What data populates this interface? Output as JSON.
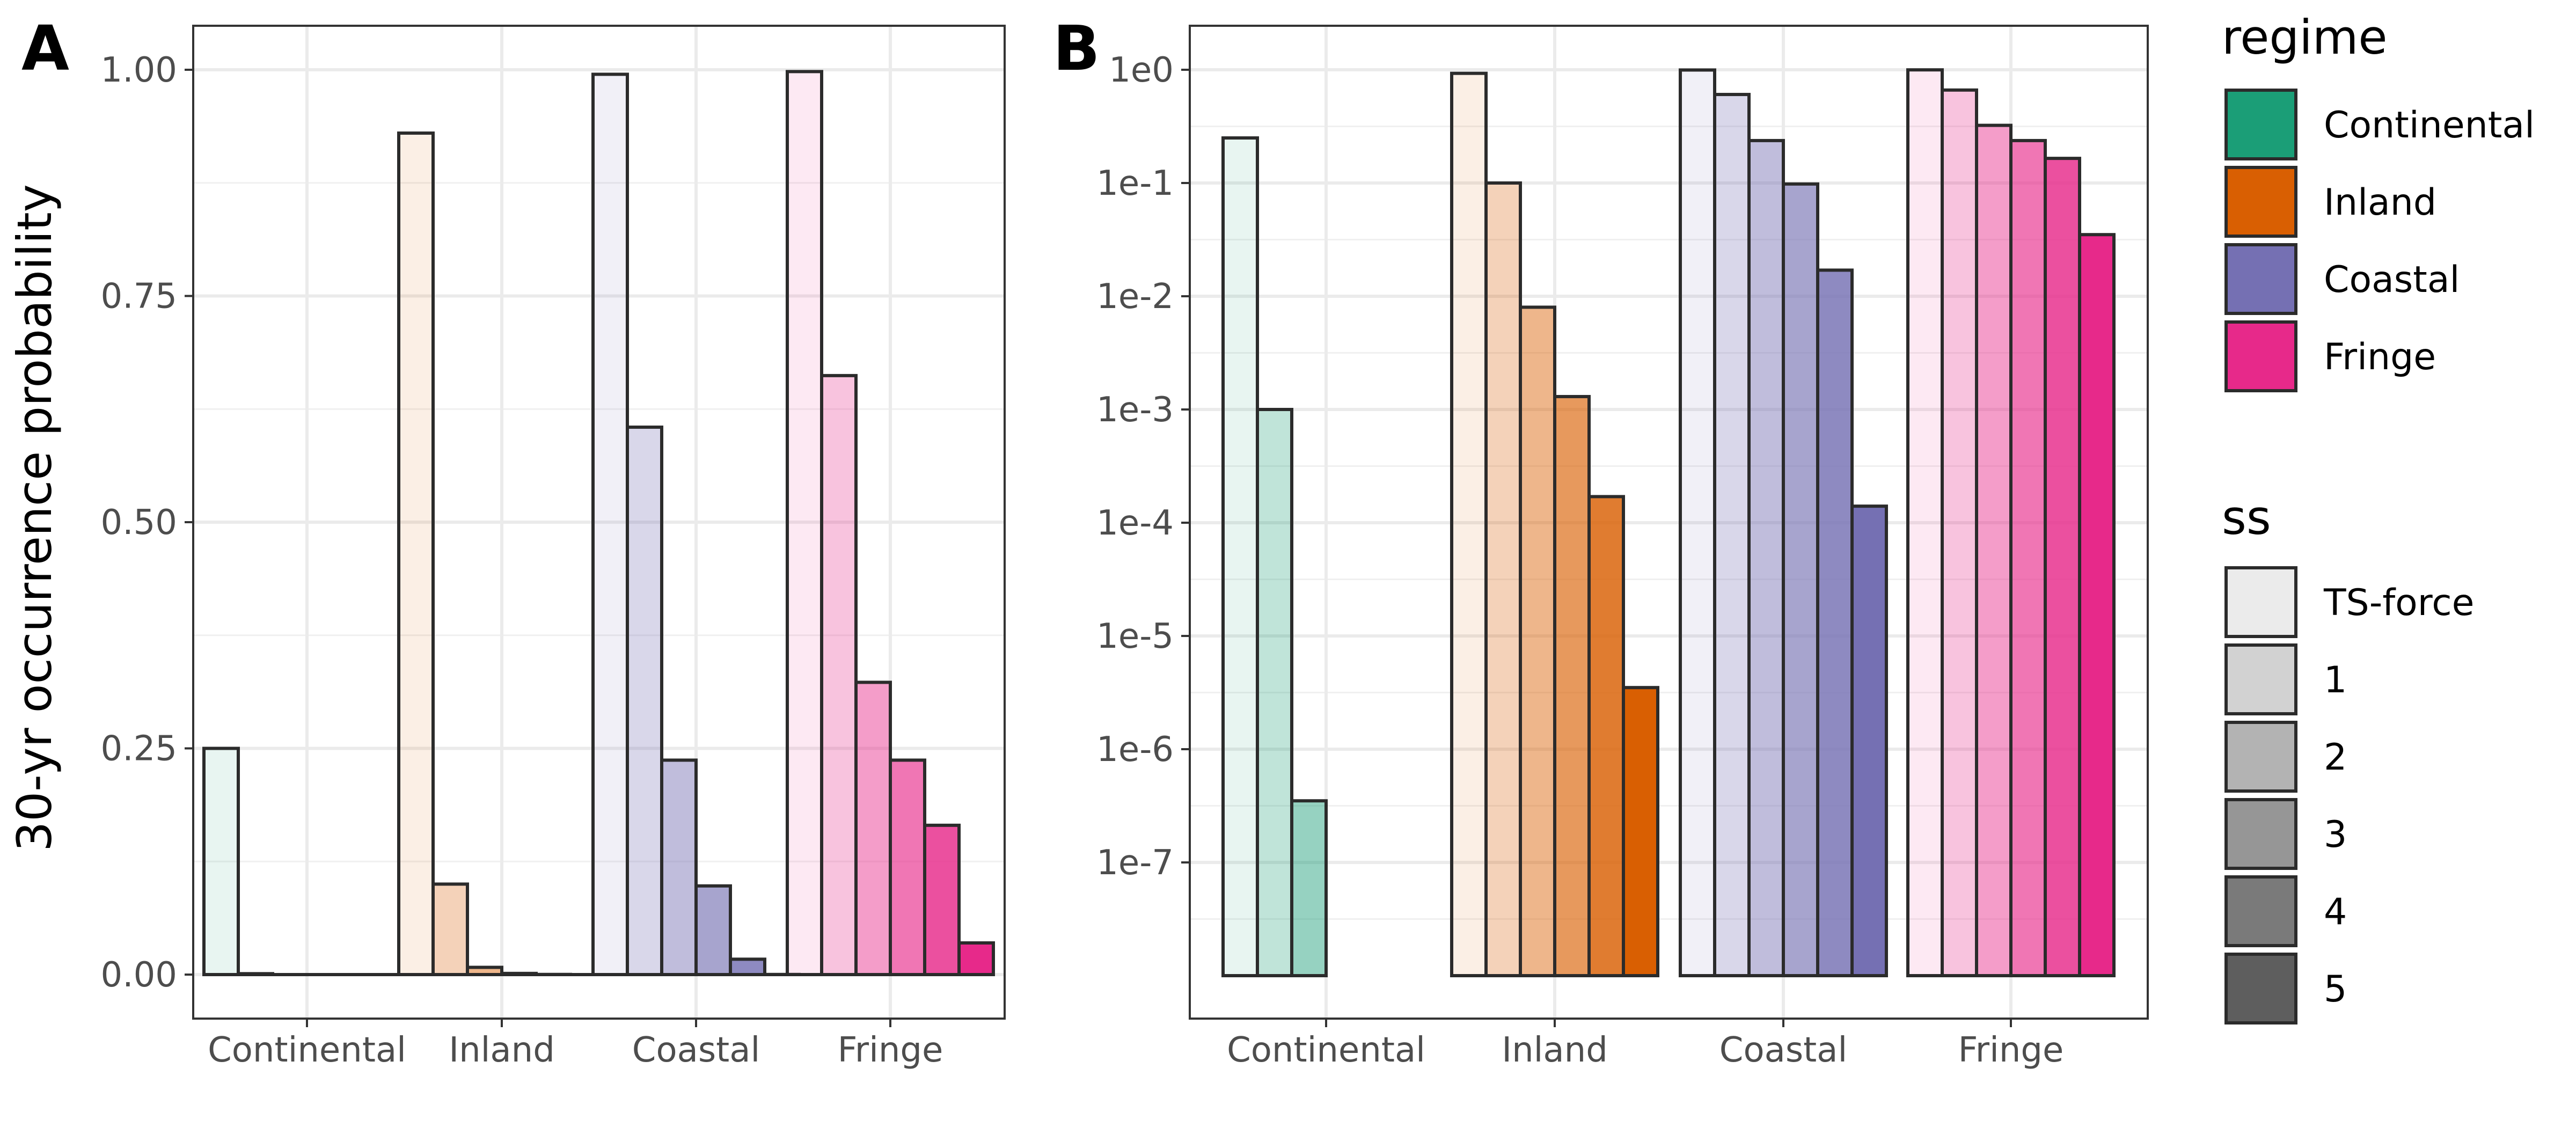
{
  "chart_data": [
    {
      "panel": "A",
      "type": "bar",
      "ylabel": "30-yr occurrence probability",
      "xlabel": "",
      "ylim": [
        -0.05,
        1.05
      ],
      "yticks": [
        0,
        0.25,
        0.5,
        0.75,
        1.0
      ],
      "ytick_labels": [
        "0.00",
        "0.25",
        "0.50",
        "0.75",
        "1.00"
      ],
      "grid": true,
      "categories": [
        "Continental",
        "Inland",
        "Coastal",
        "Fringe"
      ],
      "series_labels": [
        "TS-force",
        "1",
        "2",
        "3",
        "4",
        "5"
      ],
      "values": {
        "Continental": [
          0.25,
          0.001,
          3.5e-07,
          0,
          0,
          0
        ],
        "Inland": [
          0.93,
          0.1,
          0.008,
          0.0013,
          0.00017,
          3.5e-06
        ],
        "Coastal": [
          0.995,
          0.605,
          0.237,
          0.098,
          0.017,
          0.00014
        ],
        "Fringe": [
          0.998,
          0.662,
          0.323,
          0.237,
          0.165,
          0.035
        ]
      }
    },
    {
      "panel": "B",
      "type": "bar",
      "ylabel": "",
      "xlabel": "",
      "yscale": "log",
      "ylim": [
        1e-08,
        1
      ],
      "yticks": [
        1,
        0.1,
        0.01,
        0.001,
        0.0001,
        1e-05,
        1e-06,
        1e-07
      ],
      "ytick_labels": [
        "1e0",
        "1e-1",
        "1e-2",
        "1e-3",
        "1e-4",
        "1e-5",
        "1e-6",
        "1e-7"
      ],
      "grid": true,
      "categories": [
        "Continental",
        "Inland",
        "Coastal",
        "Fringe"
      ],
      "series_labels": [
        "TS-force",
        "1",
        "2",
        "3",
        "4",
        "5"
      ],
      "values": {
        "Continental": [
          0.25,
          0.001,
          3.5e-07,
          null,
          null,
          null
        ],
        "Inland": [
          0.93,
          0.1,
          0.008,
          0.0013,
          0.00017,
          3.5e-06
        ],
        "Coastal": [
          0.995,
          0.605,
          0.237,
          0.098,
          0.017,
          0.00014
        ],
        "Fringe": [
          0.998,
          0.662,
          0.323,
          0.237,
          0.165,
          0.035
        ]
      }
    }
  ],
  "panels": {
    "a_letter": "A",
    "b_letter": "B"
  },
  "legend": {
    "regime_title": "regime",
    "regime_items": [
      {
        "label": "Continental",
        "color": "#1B9E77"
      },
      {
        "label": "Inland",
        "color": "#D95F02"
      },
      {
        "label": "Coastal",
        "color": "#7570B3"
      },
      {
        "label": "Fringe",
        "color": "#E7298A"
      }
    ],
    "ss_title": "ss",
    "ss_items": [
      {
        "label": "TS-force",
        "shade": "#ebebeb"
      },
      {
        "label": "1",
        "shade": "#d2d2d2"
      },
      {
        "label": "2",
        "shade": "#b3b3b3"
      },
      {
        "label": "3",
        "shade": "#969696"
      },
      {
        "label": "4",
        "shade": "#7a7a7a"
      },
      {
        "label": "5",
        "shade": "#5e5e5e"
      }
    ]
  },
  "alpha_levels": [
    0.1,
    0.28,
    0.46,
    0.64,
    0.82,
    1.0
  ]
}
